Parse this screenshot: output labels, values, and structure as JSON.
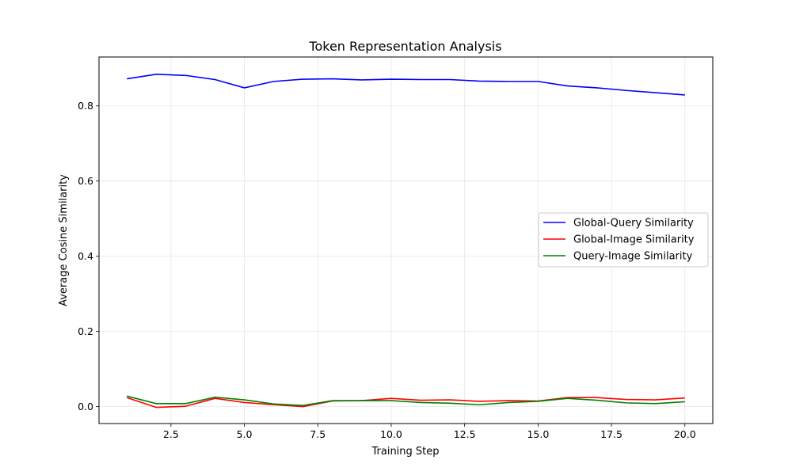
{
  "chart_data": {
    "type": "line",
    "title": "Token Representation Analysis",
    "xlabel": "Training Step",
    "ylabel": "Average Cosine Similarity",
    "xlim": [
      0.05,
      20.95
    ],
    "ylim": [
      -0.045,
      0.93
    ],
    "xticks": [
      2.5,
      5.0,
      7.5,
      10.0,
      12.5,
      15.0,
      17.5,
      20.0
    ],
    "xtick_labels": [
      "2.5",
      "5.0",
      "7.5",
      "10.0",
      "12.5",
      "15.0",
      "17.5",
      "20.0"
    ],
    "yticks": [
      0.0,
      0.2,
      0.4,
      0.6,
      0.8
    ],
    "ytick_labels": [
      "0.0",
      "0.2",
      "0.4",
      "0.6",
      "0.8"
    ],
    "grid": true,
    "legend_position": "center-right",
    "x": [
      1,
      2,
      3,
      4,
      5,
      6,
      7,
      8,
      9,
      10,
      11,
      12,
      13,
      14,
      15,
      16,
      17,
      18,
      19,
      20
    ],
    "series": [
      {
        "name": "Global-Query Similarity",
        "color": "#0000ff",
        "values": [
          0.872,
          0.884,
          0.881,
          0.87,
          0.848,
          0.865,
          0.871,
          0.872,
          0.869,
          0.871,
          0.87,
          0.87,
          0.866,
          0.865,
          0.865,
          0.853,
          0.848,
          0.841,
          0.835,
          0.829
        ]
      },
      {
        "name": "Global-Image Similarity",
        "color": "#ff0000",
        "values": [
          0.024,
          -0.002,
          0.001,
          0.022,
          0.011,
          0.005,
          0.0,
          0.015,
          0.016,
          0.022,
          0.017,
          0.018,
          0.014,
          0.016,
          0.015,
          0.024,
          0.024,
          0.019,
          0.018,
          0.023
        ]
      },
      {
        "name": "Query-Image Similarity",
        "color": "#008000",
        "values": [
          0.028,
          0.008,
          0.008,
          0.025,
          0.018,
          0.007,
          0.003,
          0.016,
          0.016,
          0.016,
          0.011,
          0.009,
          0.005,
          0.011,
          0.014,
          0.022,
          0.017,
          0.01,
          0.008,
          0.013
        ]
      }
    ]
  }
}
